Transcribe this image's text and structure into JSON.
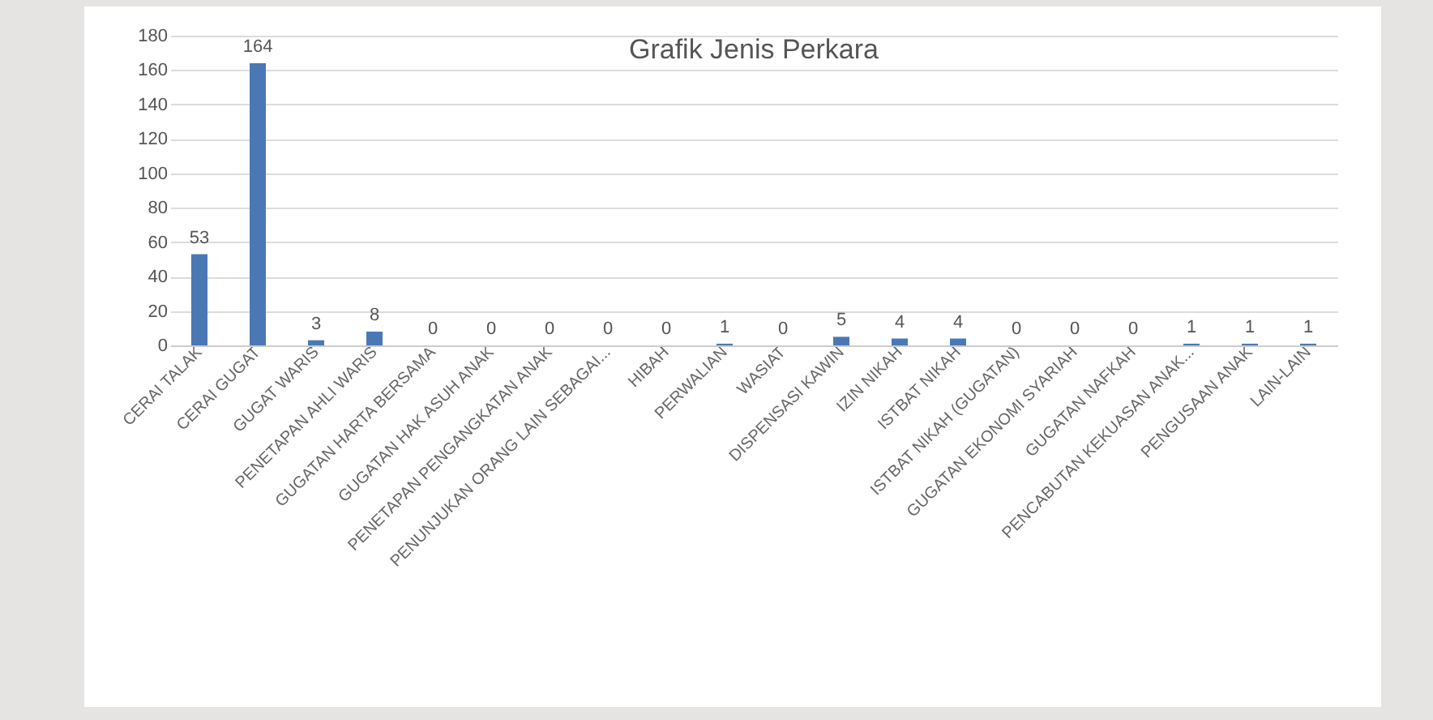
{
  "chart_data": {
    "type": "bar",
    "title": "Grafik Jenis Perkara",
    "categories": [
      "CERAI TALAK",
      "CERAI GUGAT",
      "GUGAT WARIS",
      "PENETAPAN AHLI WARIS",
      "GUGATAN HARTA BERSAMA",
      "GUGATAN HAK ASUH ANAK",
      "PENETAPAN PENGANGKATAN ANAK",
      "PENUNJUKAN ORANG LAIN SEBAGAI...",
      "HIBAH",
      "PERWALIAN",
      "WASIAT",
      "DISPENSASI  KAWIN",
      "IZIN  NIKAH",
      "ISTBAT  NIKAH",
      "ISTBAT NIKAH (GUGATAN)",
      "GUGATAN EKONOMI SYARIAH",
      "GUGATAN NAFKAH",
      "PENCABUTAN KEKUASAN ANAK...",
      "PENGUSAAN ANAK",
      "LAIN-LAIN"
    ],
    "values": [
      53,
      164,
      3,
      8,
      0,
      0,
      0,
      0,
      0,
      1,
      0,
      5,
      4,
      4,
      0,
      0,
      0,
      1,
      1,
      1
    ],
    "color": "#4a78b5",
    "ylim": [
      0,
      180
    ],
    "yticks": [
      0,
      20,
      40,
      60,
      80,
      100,
      120,
      140,
      160,
      180
    ],
    "grid": "y",
    "data_labels": true
  }
}
